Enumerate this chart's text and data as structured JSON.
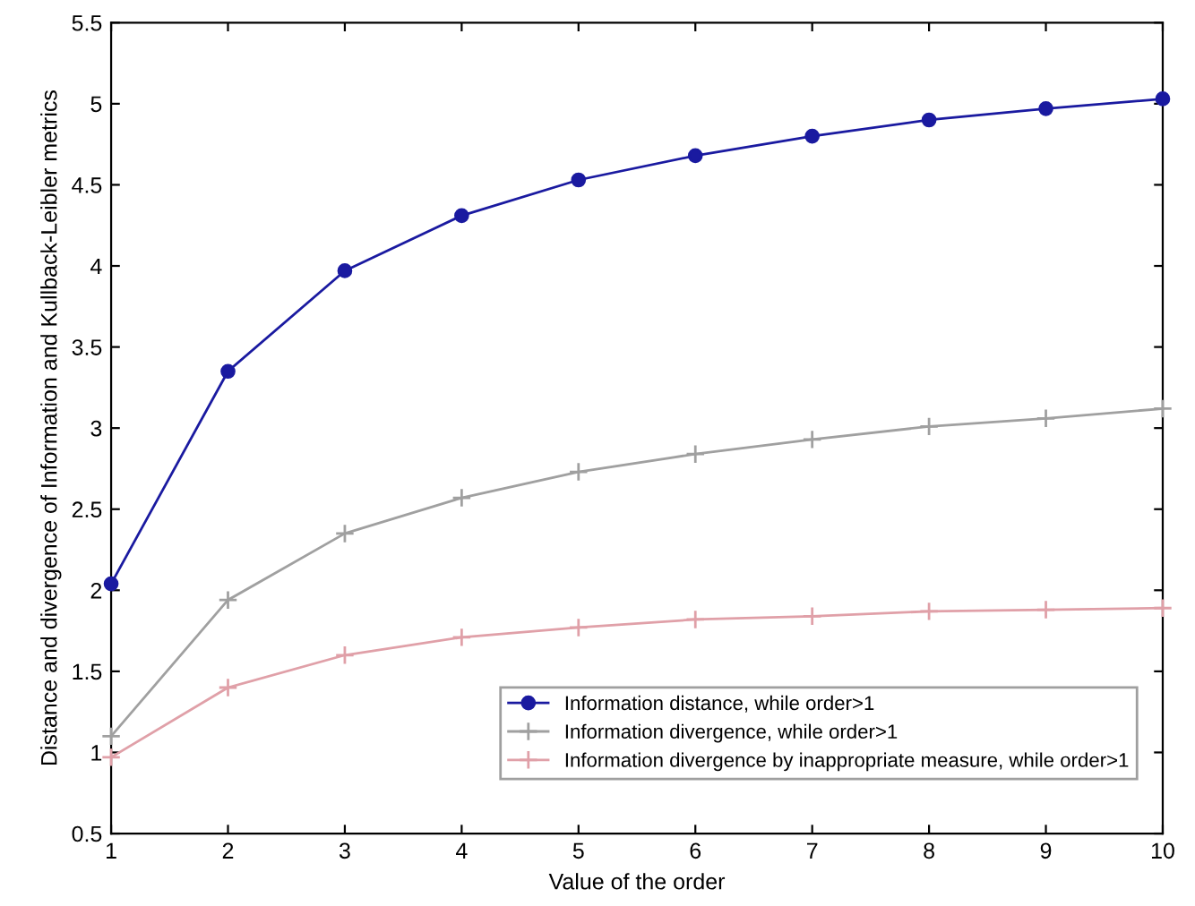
{
  "chart_data": {
    "type": "line",
    "xlabel": "Value of the order",
    "ylabel": "Distance and divergence of Information and Kullback-Leibler metrics",
    "x": [
      1,
      2,
      3,
      4,
      5,
      6,
      7,
      8,
      9,
      10
    ],
    "series": [
      {
        "name": "Information distance, while order>1",
        "color": "#1a1aa0",
        "marker": "circle",
        "values": [
          2.04,
          3.35,
          3.97,
          4.31,
          4.53,
          4.68,
          4.8,
          4.9,
          4.97,
          5.03
        ]
      },
      {
        "name": "Information divergence, while order>1",
        "color": "#a0a0a0",
        "marker": "cross",
        "values": [
          1.1,
          1.94,
          2.35,
          2.57,
          2.73,
          2.84,
          2.93,
          3.01,
          3.06,
          3.12
        ]
      },
      {
        "name": "Information divergence by inappropriate measure, while order>1",
        "color": "#e0a0a8",
        "marker": "cross",
        "values": [
          0.97,
          1.4,
          1.6,
          1.71,
          1.77,
          1.82,
          1.84,
          1.87,
          1.88,
          1.89
        ]
      }
    ],
    "xlim": [
      1,
      10
    ],
    "xticks": [
      1,
      2,
      3,
      4,
      5,
      6,
      7,
      8,
      9,
      10
    ],
    "ylim": [
      0.5,
      5.5
    ],
    "yticks": [
      0.5,
      1,
      1.5,
      2,
      2.5,
      3,
      3.5,
      4,
      4.5,
      5,
      5.5
    ],
    "grid": false,
    "legend": "bottom right"
  }
}
